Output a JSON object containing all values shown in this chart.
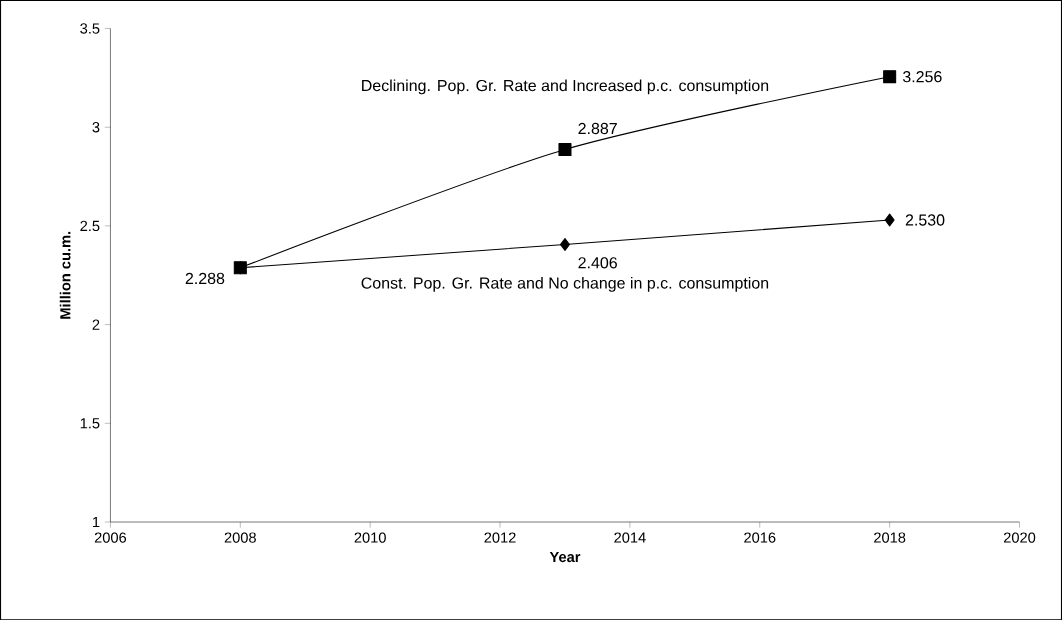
{
  "chart_data": {
    "type": "line",
    "xlabel": "Year",
    "ylabel": "Million cu.m.",
    "x": [
      2008,
      2013,
      2018
    ],
    "series": [
      {
        "name": "Declining. Pop. Gr. Rate and Increased p.c. consumption",
        "color": "#000000",
        "marker": "square",
        "values": [
          2.288,
          2.887,
          3.256
        ],
        "value_labels": [
          null,
          "2.887",
          "3.256"
        ]
      },
      {
        "name": "Const. Pop. Gr. Rate and No change in p.c. consumption",
        "color": "#000000",
        "marker": "diamond",
        "values": [
          2.288,
          2.406,
          2.53
        ],
        "value_labels": [
          "2.288",
          "2.406",
          "2.530"
        ]
      }
    ],
    "xlim": [
      2006,
      2020
    ],
    "xticks": [
      2006,
      2008,
      2010,
      2012,
      2014,
      2016,
      2018,
      2020
    ],
    "ylim": [
      1,
      3.5
    ],
    "yticks": [
      1,
      1.5,
      2,
      2.5,
      3,
      3.5
    ],
    "grid": false,
    "line_style": "solid"
  }
}
